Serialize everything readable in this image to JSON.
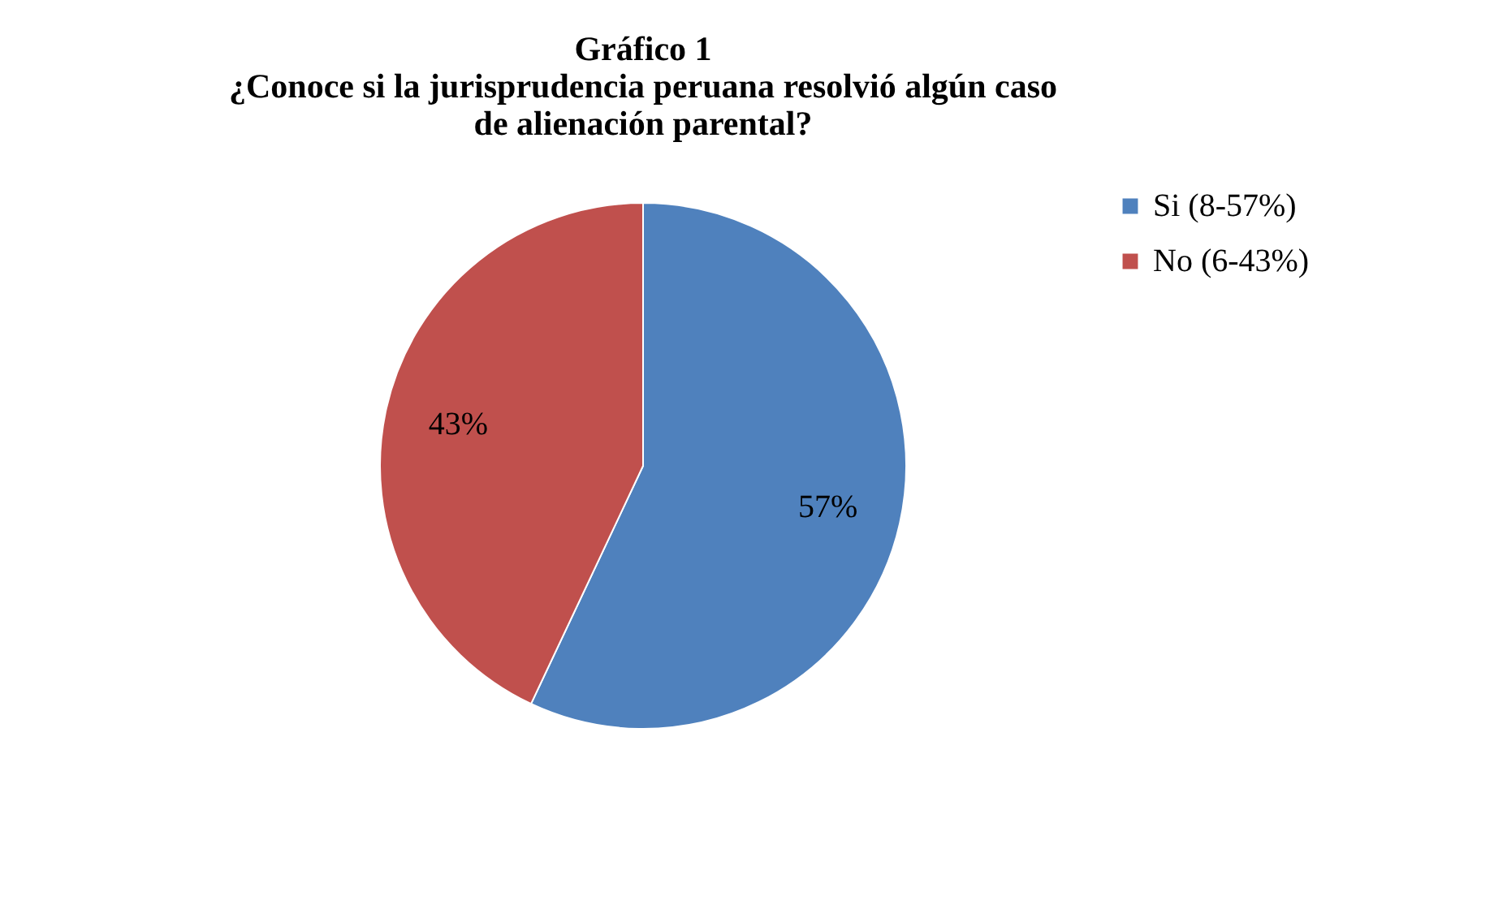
{
  "chart_data": {
    "type": "pie",
    "title": "Gráfico 1",
    "subtitle": "¿Conoce si la jurisprudencia peruana resolvió algún caso de alienación parental?",
    "categories": [
      "Si  (8-57%)",
      "No  (6-43%)"
    ],
    "values": [
      57,
      43
    ],
    "colors": [
      "#4f81bd",
      "#c0504d"
    ],
    "value_labels": [
      "57%",
      "43%"
    ],
    "legend": "right"
  }
}
